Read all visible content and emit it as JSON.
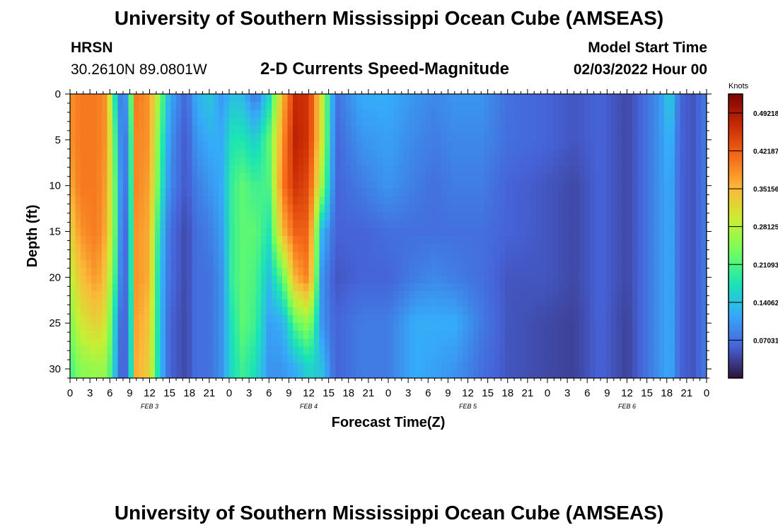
{
  "header": {
    "title": "University of Southern Mississippi Ocean Cube (AMSEAS)",
    "station": "HRSN",
    "coords": "30.2610N  89.0801W",
    "plot_title": "2-D Currents Speed-Magnitude",
    "model_start_label": "Model Start Time",
    "model_start_value": "02/03/2022 Hour 00"
  },
  "footer": {
    "title": "University of Southern Mississippi Ocean Cube (AMSEAS)"
  },
  "colorbar": {
    "unit_label": "Knots",
    "tick_labels": [
      "0.49218",
      "0.42187",
      "0.35156",
      "0.28125",
      "0.21093",
      "0.14062",
      "0.07031"
    ],
    "tick_values": [
      0.49218,
      0.42187,
      0.35156,
      0.28125,
      0.21093,
      0.14062,
      0.07031
    ],
    "range": [
      0,
      0.5275
    ],
    "colors": [
      "#30123b",
      "#4662d7",
      "#36aaf9",
      "#1ae4b6",
      "#72fe5e",
      "#c8ef34",
      "#faba39",
      "#f66b19",
      "#ca2a04",
      "#7a0403"
    ]
  },
  "chart_data": {
    "type": "heatmap",
    "title": "2-D Currents Speed-Magnitude",
    "xlabel": "Forecast Time(Z)",
    "ylabel": "Depth (ft)",
    "x_hours_range": [
      0,
      96
    ],
    "ylim": [
      0,
      31
    ],
    "y_reversed": true,
    "x_tick_labels": [
      "0",
      "3",
      "6",
      "9",
      "12",
      "15",
      "18",
      "21",
      "0",
      "3",
      "6",
      "9",
      "12",
      "15",
      "18",
      "21",
      "0",
      "3",
      "6",
      "9",
      "12",
      "15",
      "18",
      "21",
      "0",
      "3",
      "6",
      "9",
      "12",
      "15",
      "18",
      "21",
      "0"
    ],
    "y_tick_labels": [
      "0",
      "5",
      "10",
      "15",
      "20",
      "25",
      "30"
    ],
    "y_tick_values": [
      0,
      5,
      10,
      15,
      20,
      25,
      30
    ],
    "date_labels": [
      {
        "text": "FEB 3",
        "hour": 12
      },
      {
        "text": "FEB 4",
        "hour": 36
      },
      {
        "text": "FEB 5",
        "hour": 60
      },
      {
        "text": "FEB 6",
        "hour": 84
      }
    ],
    "speed_knots_by_hour": {
      "depths_ft": [
        0,
        5,
        10,
        15,
        20,
        25,
        30
      ],
      "series": [
        {
          "hour": 0,
          "values": [
            0.38,
            0.38,
            0.36,
            0.32,
            0.28,
            0.24,
            0.2
          ]
        },
        {
          "hour": 1.5,
          "values": [
            0.4,
            0.4,
            0.4,
            0.38,
            0.34,
            0.3,
            0.25
          ]
        },
        {
          "hour": 4,
          "values": [
            0.4,
            0.4,
            0.4,
            0.4,
            0.38,
            0.33,
            0.26
          ]
        },
        {
          "hour": 5.5,
          "values": [
            0.38,
            0.38,
            0.37,
            0.36,
            0.33,
            0.3,
            0.26
          ]
        },
        {
          "hour": 7,
          "values": [
            0.14,
            0.18,
            0.2,
            0.2,
            0.18,
            0.13,
            0.12
          ]
        },
        {
          "hour": 8,
          "values": [
            0.05,
            0.04,
            0.04,
            0.03,
            0.03,
            0.03,
            0.03
          ]
        },
        {
          "hour": 9,
          "values": [
            0.18,
            0.15,
            0.14,
            0.13,
            0.13,
            0.12,
            0.12
          ]
        },
        {
          "hour": 10,
          "values": [
            0.4,
            0.39,
            0.39,
            0.38,
            0.38,
            0.37,
            0.36
          ]
        },
        {
          "hour": 12,
          "values": [
            0.38,
            0.38,
            0.37,
            0.36,
            0.36,
            0.34,
            0.33
          ]
        },
        {
          "hour": 13.5,
          "values": [
            0.25,
            0.22,
            0.2,
            0.16,
            0.14,
            0.14,
            0.14
          ]
        },
        {
          "hour": 15,
          "values": [
            0.12,
            0.1,
            0.09,
            0.07,
            0.07,
            0.06,
            0.06
          ]
        },
        {
          "hour": 17.5,
          "values": [
            0.06,
            0.05,
            0.05,
            0.04,
            0.04,
            0.04,
            0.04
          ]
        },
        {
          "hour": 19,
          "values": [
            0.12,
            0.1,
            0.08,
            0.07,
            0.07,
            0.07,
            0.07
          ]
        },
        {
          "hour": 21,
          "values": [
            0.15,
            0.12,
            0.1,
            0.08,
            0.07,
            0.07,
            0.07
          ]
        },
        {
          "hour": 23,
          "values": [
            0.1,
            0.12,
            0.12,
            0.11,
            0.1,
            0.1,
            0.1
          ]
        },
        {
          "hour": 24.5,
          "values": [
            0.14,
            0.18,
            0.2,
            0.2,
            0.2,
            0.18,
            0.17
          ]
        },
        {
          "hour": 26,
          "values": [
            0.13,
            0.18,
            0.22,
            0.22,
            0.22,
            0.22,
            0.2
          ]
        },
        {
          "hour": 28,
          "values": [
            0.07,
            0.15,
            0.2,
            0.22,
            0.21,
            0.2,
            0.17
          ]
        },
        {
          "hour": 30,
          "values": [
            0.16,
            0.22,
            0.21,
            0.18,
            0.14,
            0.11,
            0.1
          ]
        },
        {
          "hour": 32,
          "values": [
            0.35,
            0.38,
            0.4,
            0.35,
            0.22,
            0.12,
            0.1
          ]
        },
        {
          "hour": 34,
          "values": [
            0.47,
            0.48,
            0.46,
            0.42,
            0.36,
            0.22,
            0.12
          ]
        },
        {
          "hour": 36,
          "values": [
            0.46,
            0.46,
            0.44,
            0.42,
            0.4,
            0.26,
            0.16
          ]
        },
        {
          "hour": 38,
          "values": [
            0.3,
            0.3,
            0.26,
            0.13,
            0.1,
            0.1,
            0.14
          ]
        },
        {
          "hour": 40,
          "values": [
            0.07,
            0.06,
            0.06,
            0.06,
            0.05,
            0.06,
            0.06
          ]
        },
        {
          "hour": 44,
          "values": [
            0.12,
            0.1,
            0.08,
            0.06,
            0.06,
            0.08,
            0.08
          ]
        },
        {
          "hour": 48,
          "values": [
            0.12,
            0.11,
            0.1,
            0.07,
            0.06,
            0.08,
            0.08
          ]
        },
        {
          "hour": 52,
          "values": [
            0.1,
            0.09,
            0.08,
            0.07,
            0.08,
            0.12,
            0.12
          ]
        },
        {
          "hour": 55,
          "values": [
            0.09,
            0.08,
            0.07,
            0.07,
            0.09,
            0.12,
            0.11
          ]
        },
        {
          "hour": 58,
          "values": [
            0.1,
            0.09,
            0.08,
            0.07,
            0.08,
            0.12,
            0.1
          ]
        },
        {
          "hour": 62,
          "values": [
            0.1,
            0.09,
            0.08,
            0.07,
            0.07,
            0.08,
            0.07
          ]
        },
        {
          "hour": 66,
          "values": [
            0.07,
            0.07,
            0.06,
            0.06,
            0.05,
            0.05,
            0.05
          ]
        },
        {
          "hour": 72,
          "values": [
            0.06,
            0.06,
            0.05,
            0.05,
            0.05,
            0.04,
            0.04
          ]
        },
        {
          "hour": 76,
          "values": [
            0.05,
            0.05,
            0.04,
            0.04,
            0.04,
            0.035,
            0.035
          ]
        },
        {
          "hour": 80,
          "values": [
            0.06,
            0.06,
            0.06,
            0.06,
            0.06,
            0.06,
            0.06
          ]
        },
        {
          "hour": 84,
          "values": [
            0.04,
            0.04,
            0.04,
            0.04,
            0.04,
            0.035,
            0.035
          ]
        },
        {
          "hour": 86,
          "values": [
            0.06,
            0.06,
            0.06,
            0.06,
            0.06,
            0.06,
            0.06
          ]
        },
        {
          "hour": 89,
          "values": [
            0.1,
            0.1,
            0.1,
            0.1,
            0.1,
            0.1,
            0.1
          ]
        },
        {
          "hour": 90.5,
          "values": [
            0.16,
            0.13,
            0.12,
            0.12,
            0.12,
            0.12,
            0.12
          ]
        },
        {
          "hour": 92,
          "values": [
            0.06,
            0.06,
            0.06,
            0.06,
            0.06,
            0.06,
            0.06
          ]
        },
        {
          "hour": 94,
          "values": [
            0.05,
            0.05,
            0.05,
            0.05,
            0.05,
            0.05,
            0.05
          ]
        },
        {
          "hour": 96,
          "values": [
            0.08,
            0.08,
            0.08,
            0.08,
            0.08,
            0.08,
            0.08
          ]
        }
      ]
    }
  }
}
